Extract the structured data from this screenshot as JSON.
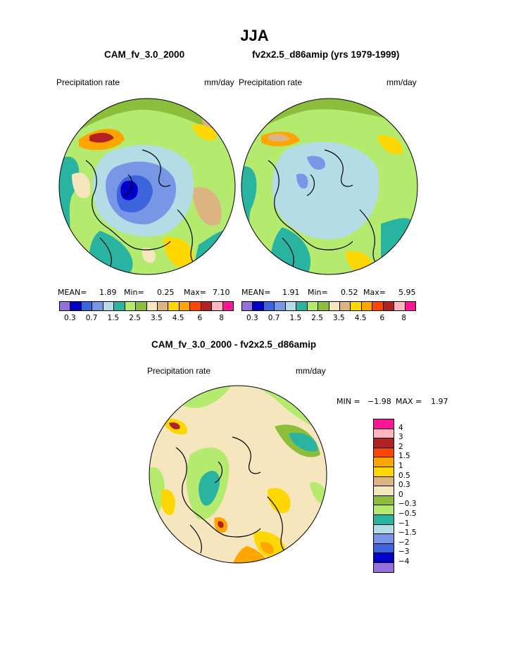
{
  "page": {
    "title": "JJA"
  },
  "panels": {
    "left": {
      "subtitle": "CAM_fv_3.0_2000",
      "variable": "Precipitation rate",
      "units": "mm/day",
      "mean_label": "MEAN=",
      "mean": "1.89",
      "min_label": "Min=",
      "min": "0.25",
      "max_label": "Max=",
      "max": "7.10"
    },
    "right": {
      "subtitle": "fv2x2.5_d86amip (yrs 1979-1999)",
      "variable": "Precipitation rate",
      "units": "mm/day",
      "mean_label": "MEAN=",
      "mean": "1.91",
      "min_label": "Min=",
      "min": "0.52",
      "max_label": "Max=",
      "max": "5.95"
    },
    "diff": {
      "subtitle": "CAM_fv_3.0_2000 - fv2x2.5_d86amip",
      "variable": "Precipitation rate",
      "units": "mm/day",
      "min_label": "MIN =",
      "min": "−1.98",
      "max_label": "MAX =",
      "max": "1.97"
    }
  },
  "colorbar_top": {
    "colors": [
      "#9370db",
      "#0000c8",
      "#3c64dc",
      "#7896e6",
      "#b4dce6",
      "#28b4a0",
      "#b4eb6e",
      "#8cbe3c",
      "#f5e6be",
      "#dcb482",
      "#ffd700",
      "#ffa500",
      "#ff4500",
      "#b22222",
      "#ffb6c1",
      "#ff1493"
    ],
    "labels": [
      "0.3",
      "0.7",
      "1.5",
      "2.5",
      "3.5",
      "4.5",
      "6",
      "8"
    ]
  },
  "colorbar_diff": {
    "colors": [
      "#ff1493",
      "#ffb6c1",
      "#b22222",
      "#ff4500",
      "#ffa500",
      "#ffd700",
      "#dcb482",
      "#f5e6be",
      "#8cbe3c",
      "#b4eb6e",
      "#28b4a0",
      "#b4dce6",
      "#7896e6",
      "#3c64dc",
      "#0000c8",
      "#9370db"
    ],
    "labels": [
      "4",
      "3",
      "2",
      "1.5",
      "1",
      "0.5",
      "0.3",
      "0",
      "−0.3",
      "−0.5",
      "−1",
      "−1.5",
      "−2",
      "−3",
      "−4"
    ]
  }
}
